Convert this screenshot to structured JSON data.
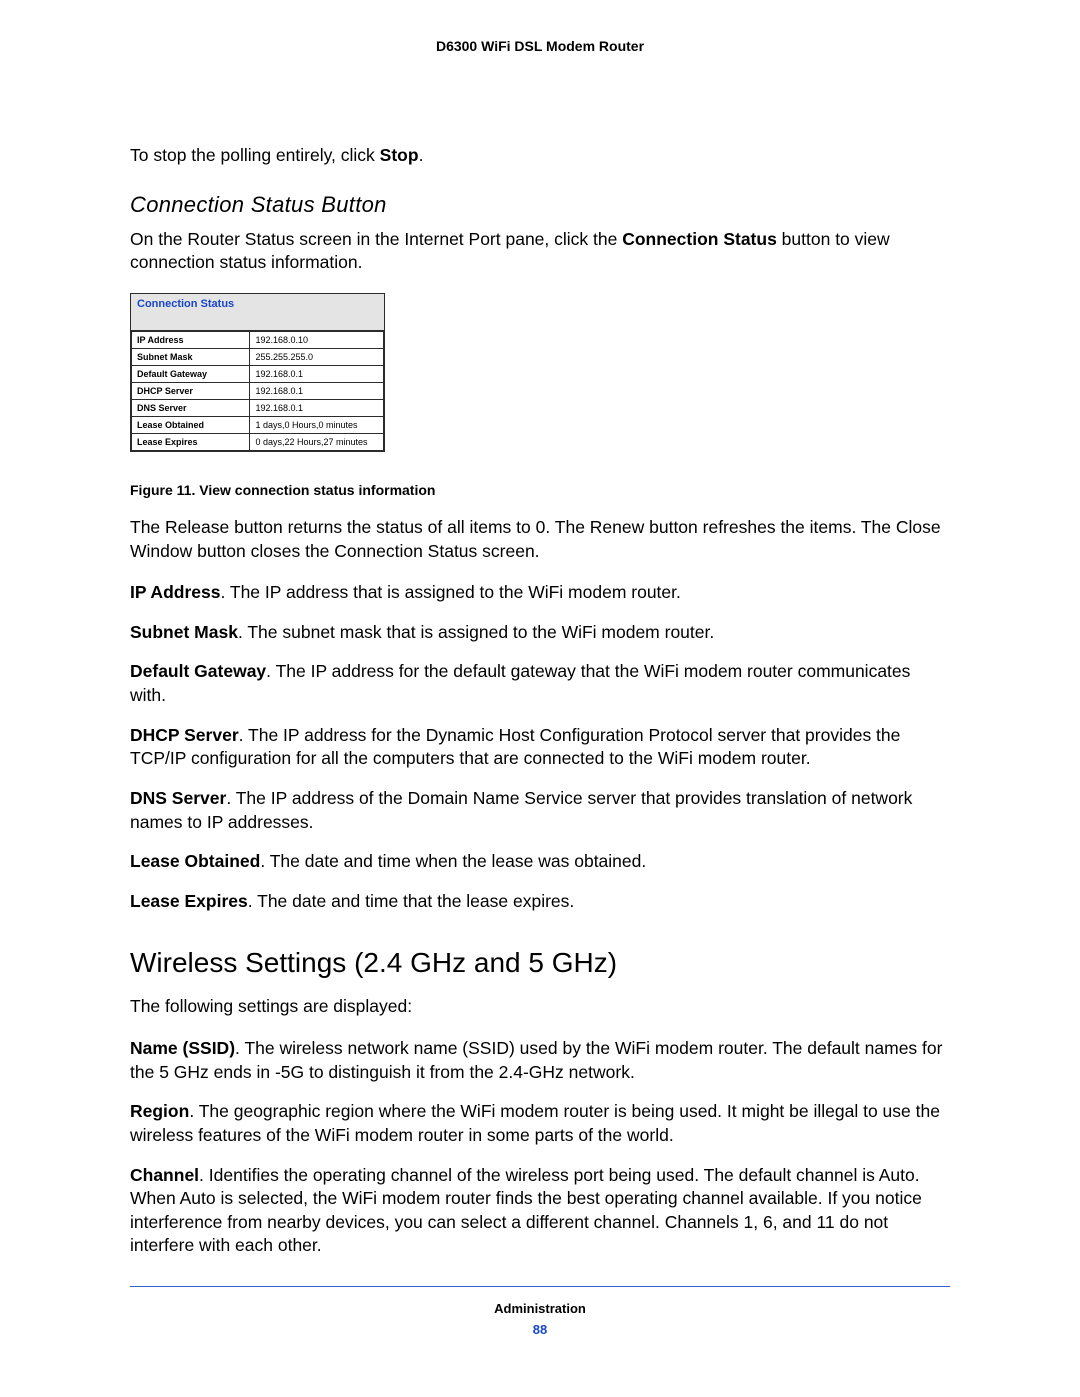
{
  "header": {
    "title": "D6300 WiFi DSL Modem Router"
  },
  "intro": {
    "stop_pre": "To stop the polling entirely, click ",
    "stop_bold": "Stop",
    "stop_post": "."
  },
  "sec_csb": {
    "heading": "Connection Status Button",
    "p_pre": "On the Router Status screen in the Internet Port pane, click the ",
    "p_bold": "Connection Status",
    "p_post": " button to view connection status information."
  },
  "cs_panel": {
    "title": "Connection Status",
    "rows": [
      {
        "k": "IP Address",
        "v": "192.168.0.10"
      },
      {
        "k": "Subnet Mask",
        "v": "255.255.255.0"
      },
      {
        "k": "Default Gateway",
        "v": "192.168.0.1"
      },
      {
        "k": "DHCP Server",
        "v": "192.168.0.1"
      },
      {
        "k": "DNS Server",
        "v": "192.168.0.1"
      },
      {
        "k": "Lease Obtained",
        "v": "1 days,0 Hours,0 minutes"
      },
      {
        "k": "Lease Expires",
        "v": "0 days,22 Hours,27 minutes"
      }
    ]
  },
  "fig11_caption": "Figure 11. View connection status information",
  "release_p": "The Release button returns the status of all items to 0. The Renew button refreshes the items. The Close Window button closes the Connection Status screen.",
  "defs": [
    {
      "term": "IP Address",
      "text": ". The IP address that is assigned to the WiFi modem router."
    },
    {
      "term": "Subnet Mask",
      "text": ". The subnet mask that is assigned to the WiFi modem router."
    },
    {
      "term": "Default Gateway",
      "text": ". The IP address for the default gateway that the WiFi modem router communicates with."
    },
    {
      "term": "DHCP Server",
      "text": ". The IP address for the Dynamic Host Configuration Protocol server that provides the TCP/IP configuration for all the computers that are connected to the WiFi modem router."
    },
    {
      "term": "DNS Server",
      "text": ". The IP address of the Domain Name Service server that provides translation of network names to IP addresses."
    },
    {
      "term": "Lease Obtained",
      "text": ". The date and time when the lease was obtained."
    },
    {
      "term": "Lease Expires",
      "text": ". The date and time that the lease expires."
    }
  ],
  "sec_wifi": {
    "heading": "Wireless Settings (2.4 GHz and 5 GHz)",
    "intro": "The following settings are displayed:",
    "items": [
      {
        "term": "Name (SSID)",
        "text": ". The wireless network name (SSID) used by the WiFi modem router. The default names for the 5 GHz ends in -5G to distinguish it from the 2.4-GHz network."
      },
      {
        "term": "Region",
        "text": ". The geographic region where the WiFi modem router is being used. It might be illegal to use the wireless features of the WiFi modem router in some parts of the world."
      },
      {
        "term": "Channel",
        "text": ". Identifies the operating channel of the wireless port being used. The default channel is Auto. When Auto is selected, the WiFi modem router finds the best operating channel available. If you notice interference from nearby devices, you can select a different channel. Channels 1, 6, and 11 do not interfere with each other."
      }
    ]
  },
  "footer": {
    "section": "Administration",
    "page": "88"
  }
}
